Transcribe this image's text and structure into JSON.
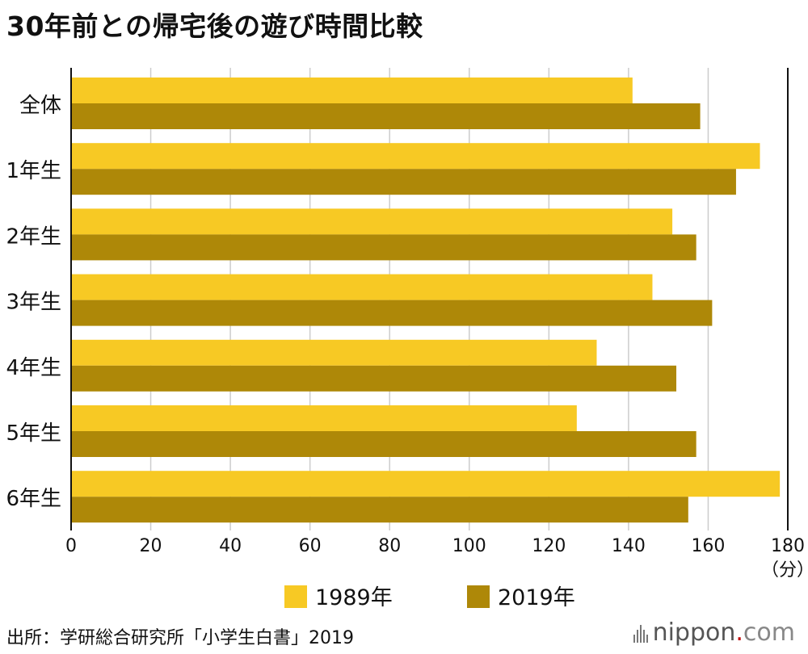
{
  "title": "30年前との帰宅後の遊び時間比較",
  "source": "出所：学研総合研究所「小学生白書」2019",
  "brand": {
    "name": "nippon",
    "dot": ".",
    "suffix": "com"
  },
  "colors": {
    "series_1989": "#F7C924",
    "series_2019": "#AE8808",
    "grid": "#CCCCCC",
    "axis": "#111111"
  },
  "chart_data": {
    "type": "bar",
    "orientation": "horizontal",
    "categories": [
      "全体",
      "1年生",
      "2年生",
      "3年生",
      "4年生",
      "5年生",
      "6年生"
    ],
    "series": [
      {
        "name": "1989年",
        "values": [
          141,
          173,
          151,
          146,
          132,
          127,
          178
        ]
      },
      {
        "name": "2019年",
        "values": [
          158,
          167,
          157,
          161,
          152,
          157,
          155
        ]
      }
    ],
    "xlim": [
      0,
      180
    ],
    "xticks": [
      0,
      20,
      40,
      60,
      80,
      100,
      120,
      140,
      160,
      180
    ],
    "xunit": "（分）",
    "grid": true,
    "legend_position": "bottom"
  }
}
